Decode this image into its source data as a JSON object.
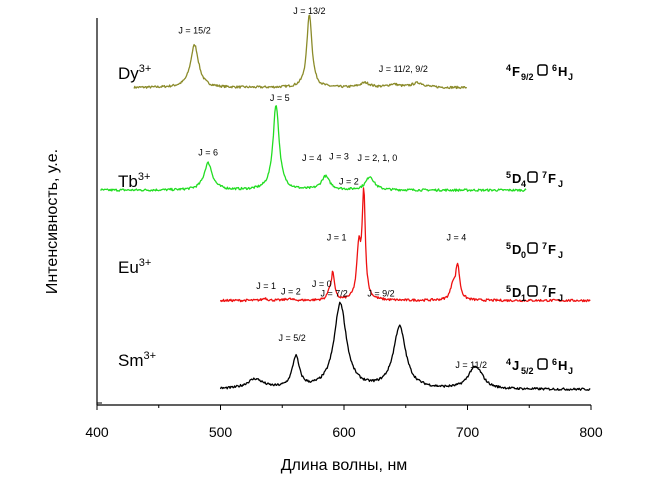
{
  "chart_data": {
    "type": "line",
    "title": "",
    "xlabel": "Длина волны, нм",
    "ylabel": "Интенсивность, у.е.",
    "xlim": [
      400,
      800
    ],
    "xticks": [
      "400",
      "500",
      "600",
      "700",
      "800"
    ],
    "grid": false,
    "series": [
      {
        "name": "Dy3+",
        "ion": "Dy",
        "charge": "3+",
        "color": "#8b8b2a",
        "baseline": 0.82,
        "x_range": [
          430,
          700
        ],
        "peaks": [
          [
            479,
            0.11,
            4
          ],
          [
            572,
            0.19,
            2.5
          ],
          [
            617,
            0.012,
            5
          ],
          [
            640,
            0.008,
            5
          ],
          [
            660,
            0.012,
            6
          ]
        ],
        "transition": {
          "pre": "4",
          "a": "F",
          "a_sub": "9/2",
          "arrow_color": "#000",
          "post": "6",
          "b": "H",
          "b_sub": "J",
          "color": "#000"
        },
        "annotations": [
          {
            "text": "J = 15/2",
            "x": 479,
            "level": 0.96
          },
          {
            "text": "J = 13/2",
            "x": 572,
            "level": 1.01
          },
          {
            "text": "J = 11/2, 9/2",
            "x": 648,
            "level": 0.86
          }
        ]
      },
      {
        "name": "Tb3+",
        "ion": "Tb",
        "charge": "3+",
        "color": "#22dd22",
        "baseline": 0.555,
        "x_range": [
          403,
          748
        ],
        "peaks": [
          [
            490,
            0.07,
            4
          ],
          [
            545,
            0.22,
            3
          ],
          [
            585,
            0.035,
            4
          ],
          [
            621,
            0.035,
            4
          ]
        ],
        "transition": {
          "pre": "5",
          "a": "D",
          "a_sub": "4",
          "post": "7",
          "b": "F",
          "b_sub": "J",
          "color": "#000"
        },
        "annotations": [
          {
            "text": "J = 6",
            "x": 490,
            "level": 0.645
          },
          {
            "text": "J = 5",
            "x": 548,
            "level": 0.785
          },
          {
            "text": "J = 4",
            "x": 574,
            "level": 0.63
          },
          {
            "text": "J = 3",
            "x": 596,
            "level": 0.635
          },
          {
            "text": "J = 2, 1, 0",
            "x": 627,
            "level": 0.63
          }
        ]
      },
      {
        "name": "Eu3+",
        "ion": "Eu",
        "charge": "3+",
        "color": "#ee1111",
        "baseline": 0.27,
        "x_range": [
          500,
          800
        ],
        "peaks": [
          [
            536,
            0.006,
            2
          ],
          [
            555,
            0.004,
            3
          ],
          [
            588,
            0.02,
            1.5
          ],
          [
            591,
            0.07,
            1.5
          ],
          [
            612,
            0.13,
            2
          ],
          [
            616,
            0.27,
            1.5
          ],
          [
            688,
            0.035,
            2
          ],
          [
            692,
            0.09,
            2
          ]
        ],
        "transition": {
          "pre": "5",
          "a": "D",
          "a_sub": "0",
          "post": "7",
          "b": "F",
          "b_sub": "J",
          "color": "#000"
        },
        "transition2": {
          "pre": "5",
          "a": "D",
          "a_sub": "1",
          "post": "7",
          "b": "F",
          "b_sub": "J",
          "color": "#1a1aa0"
        },
        "annotations": [
          {
            "text": "J = 2",
            "x": 604,
            "level": 0.57,
            "color": "#000"
          },
          {
            "text": "J = 1",
            "x": 594,
            "level": 0.425,
            "color": "#000"
          },
          {
            "text": "J = 4",
            "x": 691,
            "level": 0.425,
            "color": "#000"
          },
          {
            "text": "J = 0",
            "x": 582,
            "level": 0.305,
            "color": "#000"
          },
          {
            "text": "J = 1",
            "x": 537,
            "level": 0.3,
            "color": "#1a1aa0"
          },
          {
            "text": "J = 2",
            "x": 557,
            "level": 0.285,
            "color": "#1a1aa0"
          }
        ]
      },
      {
        "name": "Sm3+",
        "ion": "Sm",
        "charge": "3+",
        "color": "#000000",
        "baseline": 0.04,
        "x_range": [
          500,
          800
        ],
        "peaks": [
          [
            528,
            0.025,
            8
          ],
          [
            561,
            0.08,
            3.5
          ],
          [
            597,
            0.22,
            6
          ],
          [
            645,
            0.16,
            6
          ],
          [
            705,
            0.045,
            6
          ],
          [
            710,
            0.02,
            5
          ]
        ],
        "transition": {
          "pre": "4",
          "a": "J",
          "a_sub": "5/2",
          "post": "6",
          "b": "H",
          "b_sub": "J",
          "color": "#000"
        },
        "annotations": [
          {
            "text": "J = 5/2",
            "x": 558,
            "level": 0.165
          },
          {
            "text": "J = 7/2",
            "x": 592,
            "level": 0.28
          },
          {
            "text": "J = 9/2",
            "x": 630,
            "level": 0.28
          },
          {
            "text": "J = 11/2",
            "x": 703,
            "level": 0.095
          }
        ]
      }
    ]
  }
}
